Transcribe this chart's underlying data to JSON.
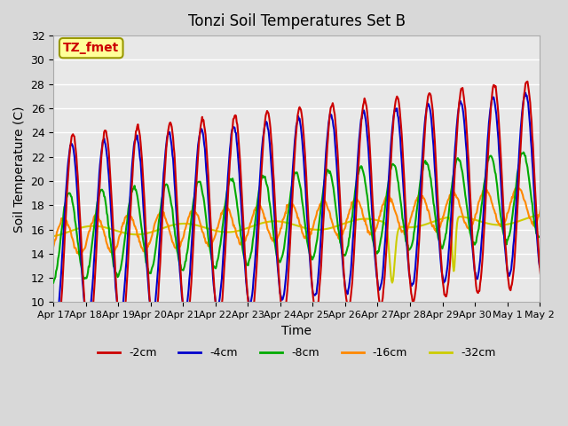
{
  "title": "Tonzi Soil Temperatures Set B",
  "xlabel": "Time",
  "ylabel": "Soil Temperature (C)",
  "ylim": [
    10,
    32
  ],
  "n_days": 16,
  "series": {
    "-2cm": {
      "color": "#cc0000",
      "lw": 1.5
    },
    "-4cm": {
      "color": "#0000cc",
      "lw": 1.5
    },
    "-8cm": {
      "color": "#00aa00",
      "lw": 1.5
    },
    "-16cm": {
      "color": "#ff8800",
      "lw": 1.5
    },
    "-32cm": {
      "color": "#cccc00",
      "lw": 1.5
    }
  },
  "xtick_labels": [
    "Apr 17",
    "Apr 18",
    "Apr 19",
    "Apr 20",
    "Apr 21",
    "Apr 22",
    "Apr 23",
    "Apr 24",
    "Apr 25",
    "Apr 26",
    "Apr 27",
    "Apr 28",
    "Apr 29",
    "Apr 30",
    "May 1",
    "May 2"
  ],
  "ytick_labels": [
    10,
    12,
    14,
    16,
    18,
    20,
    22,
    24,
    26,
    28,
    30,
    32
  ],
  "annotation_text": "TZ_fmet",
  "annotation_color": "#cc0000",
  "annotation_bg": "#ffff99",
  "annotation_border": "#999900",
  "fig_facecolor": "#d8d8d8",
  "ax_facecolor": "#e8e8e8",
  "grid_color": "#ffffff"
}
